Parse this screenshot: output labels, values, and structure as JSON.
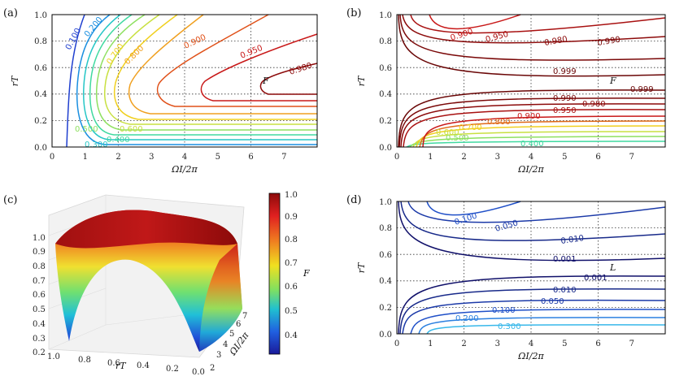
{
  "chart_data": [
    {
      "id": "a",
      "panel_label": "(a)",
      "type": "contour",
      "xlabel": "ΩI/2π",
      "ylabel": "rT",
      "xlim": [
        0,
        8
      ],
      "ylim": [
        0,
        1
      ],
      "xticks": [
        "0",
        "1",
        "2",
        "3",
        "4",
        "5",
        "6",
        "7"
      ],
      "yticks": [
        "0.0",
        "0.2",
        "0.4",
        "0.6",
        "0.8",
        "1.0"
      ],
      "annotation": "F",
      "grid": "dotted at x=2,4,6 and y=0.2,0.4,0.6,0.8",
      "levels": [
        {
          "value": "0.100",
          "color": "#1f3fcf"
        },
        {
          "value": "0.200",
          "color": "#1a8fe0"
        },
        {
          "value": "0.300",
          "color": "#26c6c6"
        },
        {
          "value": "0.400",
          "color": "#40d9a0"
        },
        {
          "value": "0.500",
          "color": "#8ee060"
        },
        {
          "value": "0.600",
          "color": "#c8e040"
        },
        {
          "value": "0.700",
          "color": "#f0d020"
        },
        {
          "value": "0.800",
          "color": "#f0a020"
        },
        {
          "value": "0.900",
          "color": "#e05018"
        },
        {
          "value": "0.950",
          "color": "#c81818"
        },
        {
          "value": "0.980",
          "color": "#8c0a0a"
        }
      ],
      "labels_shown": [
        "0.100",
        "0.200",
        "0.300",
        "0.400",
        "0.500",
        "0.600",
        "0.700",
        "0.800",
        "0.900",
        "0.950",
        "0.980"
      ]
    },
    {
      "id": "b",
      "panel_label": "(b)",
      "type": "contour",
      "xlabel": "ΩI/2π",
      "ylabel": "rT",
      "xlim": [
        0,
        8
      ],
      "ylim": [
        0,
        1
      ],
      "xticks": [
        "0",
        "1",
        "2",
        "3",
        "4",
        "5",
        "6",
        "7"
      ],
      "yticks": [
        "0.0",
        "0.2",
        "0.4",
        "0.6",
        "0.8",
        "1.0"
      ],
      "annotation": "F",
      "levels": [
        {
          "value": "0.400",
          "color": "#40d9a0"
        },
        {
          "value": "0.500",
          "color": "#8ee060"
        },
        {
          "value": "0.600",
          "color": "#c8e040"
        },
        {
          "value": "0.700",
          "color": "#f0d020"
        },
        {
          "value": "0.800",
          "color": "#e06a18"
        },
        {
          "value": "0.900",
          "color": "#c81818"
        },
        {
          "value": "0.950",
          "color": "#a81010"
        },
        {
          "value": "0.980",
          "color": "#8c0a0a"
        },
        {
          "value": "0.990",
          "color": "#7a0808"
        },
        {
          "value": "0.999",
          "color": "#6a0606"
        }
      ],
      "labels_top": [
        "0.900",
        "0.950",
        "0.980",
        "0.990",
        "0.999"
      ],
      "labels_bottom": [
        "0.999",
        "0.990",
        "0.980",
        "0.950",
        "0.900",
        "0.800",
        "0.700",
        "0.600",
        "0.500",
        "0.400"
      ]
    },
    {
      "id": "c",
      "panel_label": "(c)",
      "type": "surface",
      "zlabel": "F",
      "xlabel": "rT",
      "ylabel": "ΩI/2π",
      "zticks": [
        "0.2",
        "0.3",
        "0.4",
        "0.5",
        "0.6",
        "0.7",
        "0.8",
        "0.9",
        "1.0"
      ],
      "xticks": [
        "1.0",
        "0.8",
        "0.6",
        "0.4",
        "0.2",
        "0.0"
      ],
      "yticks": [
        "2",
        "3",
        "4",
        "5",
        "6",
        "7"
      ],
      "colorbar": {
        "ticks": [
          "1.0",
          "0.9",
          "0.8",
          "0.7",
          "0.6",
          "0.5",
          "0.4"
        ],
        "colors": [
          "#8c0a0a",
          "#e02020",
          "#f08020",
          "#f0e020",
          "#80e060",
          "#20c0d0",
          "#2060e0",
          "#1a1a9a"
        ]
      }
    },
    {
      "id": "d",
      "panel_label": "(d)",
      "type": "contour",
      "xlabel": "ΩI/2π",
      "ylabel": "rT",
      "xlim": [
        0,
        8
      ],
      "ylim": [
        0,
        1
      ],
      "xticks": [
        "0",
        "1",
        "2",
        "3",
        "4",
        "5",
        "6",
        "7"
      ],
      "yticks": [
        "0.0",
        "0.2",
        "0.4",
        "0.6",
        "0.8",
        "1.0"
      ],
      "annotation": "L",
      "levels": [
        {
          "value": "0.001",
          "color": "#10106a"
        },
        {
          "value": "0.010",
          "color": "#182a8a"
        },
        {
          "value": "0.050",
          "color": "#1c3aa8"
        },
        {
          "value": "0.100",
          "color": "#2050c8"
        },
        {
          "value": "0.200",
          "color": "#2c80e0"
        },
        {
          "value": "0.300",
          "color": "#38b8ea"
        }
      ],
      "labels_top": [
        "0.100",
        "0.050",
        "0.010",
        "0.001"
      ],
      "labels_bottom": [
        "0.001",
        "0.010",
        "0.050",
        "0.100",
        "0.200",
        "0.300"
      ]
    }
  ]
}
